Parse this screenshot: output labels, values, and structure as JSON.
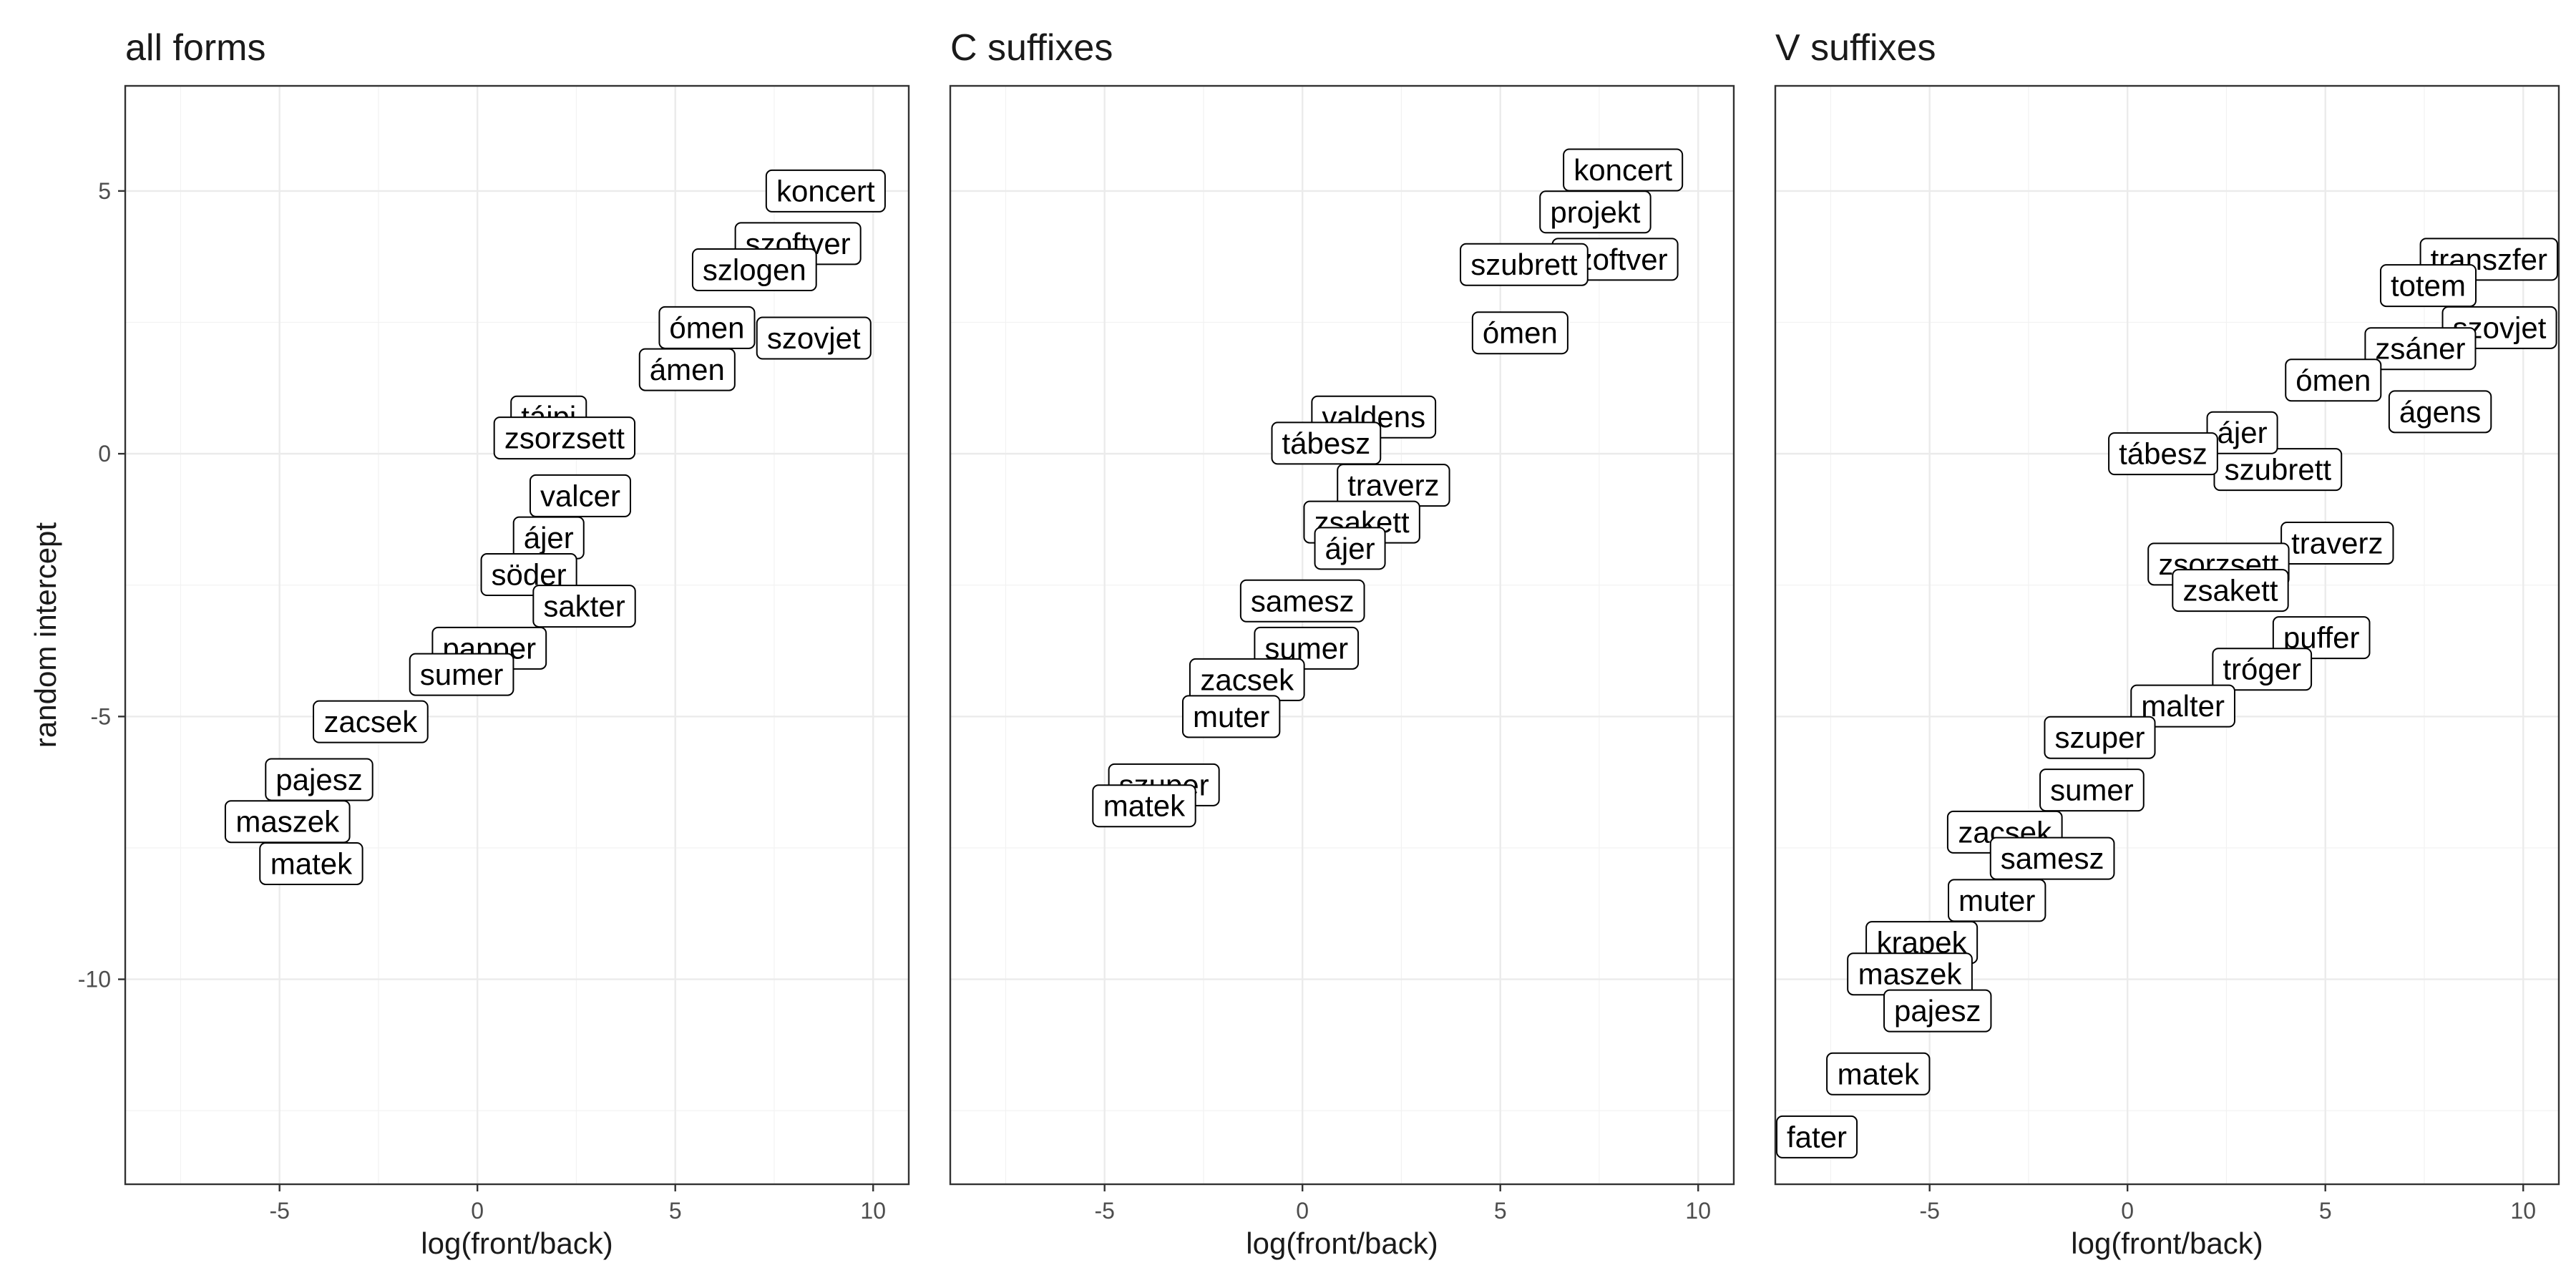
{
  "chart_data": [
    {
      "type": "scatter",
      "title": "all forms",
      "xlabel": "log(front/back)",
      "ylabel": "random intercept",
      "xlim": [
        -8.9,
        10.9
      ],
      "ylim": [
        -13.9,
        7.0
      ],
      "xticks": [
        -5,
        0,
        5,
        10
      ],
      "yticks": [
        5,
        0,
        -5,
        -10
      ],
      "grid": true,
      "points": [
        {
          "label": "koncert",
          "x": 8.8,
          "y": 5.0
        },
        {
          "label": "szoftver",
          "x": 8.1,
          "y": 4.0
        },
        {
          "label": "szlogen",
          "x": 7.0,
          "y": 3.5
        },
        {
          "label": "szovjet",
          "x": 8.5,
          "y": 2.2
        },
        {
          "label": "ómen",
          "x": 5.8,
          "y": 2.4
        },
        {
          "label": "ámen",
          "x": 5.3,
          "y": 1.6
        },
        {
          "label": "tájpi",
          "x": 1.8,
          "y": 0.7
        },
        {
          "label": "zsorzsett",
          "x": 2.2,
          "y": 0.3
        },
        {
          "label": "valcer",
          "x": 2.6,
          "y": -0.8
        },
        {
          "label": "ájer",
          "x": 1.8,
          "y": -1.6
        },
        {
          "label": "söder",
          "x": 1.3,
          "y": -2.3
        },
        {
          "label": "sakter",
          "x": 2.7,
          "y": -2.9
        },
        {
          "label": "papper",
          "x": 0.3,
          "y": -3.7
        },
        {
          "label": "sumer",
          "x": -0.4,
          "y": -4.2
        },
        {
          "label": "zacsek",
          "x": -2.7,
          "y": -5.1
        },
        {
          "label": "pajesz",
          "x": -4.0,
          "y": -6.2
        },
        {
          "label": "maszek",
          "x": -4.8,
          "y": -7.0
        },
        {
          "label": "matek",
          "x": -4.2,
          "y": -7.8
        }
      ]
    },
    {
      "type": "scatter",
      "title": "C suffixes",
      "xlabel": "log(front/back)",
      "ylabel": "",
      "xlim": [
        -8.9,
        10.9
      ],
      "ylim": [
        -13.9,
        7.0
      ],
      "xticks": [
        -5,
        0,
        5,
        10
      ],
      "grid": true,
      "points": [
        {
          "label": "koncert",
          "x": 8.1,
          "y": 5.4
        },
        {
          "label": "projekt",
          "x": 7.4,
          "y": 4.6
        },
        {
          "label": "szoftver",
          "x": 7.9,
          "y": 3.7
        },
        {
          "label": "szubrett",
          "x": 5.6,
          "y": 3.6
        },
        {
          "label": "ómen",
          "x": 5.5,
          "y": 2.3
        },
        {
          "label": "valdens",
          "x": 1.8,
          "y": 0.7
        },
        {
          "label": "tábesz",
          "x": 0.6,
          "y": 0.2
        },
        {
          "label": "traverz",
          "x": 2.3,
          "y": -0.6
        },
        {
          "label": "zsakett",
          "x": 1.5,
          "y": -1.3
        },
        {
          "label": "ájer",
          "x": 1.2,
          "y": -1.8
        },
        {
          "label": "samesz",
          "x": 0.0,
          "y": -2.8
        },
        {
          "label": "sumer",
          "x": 0.1,
          "y": -3.7
        },
        {
          "label": "zacsek",
          "x": -1.4,
          "y": -4.3
        },
        {
          "label": "muter",
          "x": -1.8,
          "y": -5.0
        },
        {
          "label": "szuper",
          "x": -3.5,
          "y": -6.3
        },
        {
          "label": "matek",
          "x": -4.0,
          "y": -6.7
        }
      ]
    },
    {
      "type": "scatter",
      "title": "V suffixes",
      "xlabel": "log(front/back)",
      "ylabel": "",
      "xlim": [
        -8.9,
        10.9
      ],
      "ylim": [
        -13.9,
        7.0
      ],
      "xticks": [
        -5,
        0,
        5,
        10
      ],
      "grid": true,
      "points": [
        {
          "label": "transzfer",
          "x": 9.8,
          "y": 3.7
        },
        {
          "label": "totem",
          "x": 7.6,
          "y": 3.2
        },
        {
          "label": "szovjet",
          "x": 9.4,
          "y": 2.4
        },
        {
          "label": "zsáner",
          "x": 7.4,
          "y": 2.0
        },
        {
          "label": "ómen",
          "x": 5.2,
          "y": 1.4
        },
        {
          "label": "ágens",
          "x": 7.9,
          "y": 0.8
        },
        {
          "label": "szubrett",
          "x": 3.8,
          "y": -0.3
        },
        {
          "label": "ájer",
          "x": 2.9,
          "y": 0.4
        },
        {
          "label": "tábesz",
          "x": 0.9,
          "y": 0.0
        },
        {
          "label": "traverz",
          "x": 5.3,
          "y": -1.7
        },
        {
          "label": "zsorzsett",
          "x": 2.3,
          "y": -2.1
        },
        {
          "label": "zsakett",
          "x": 2.6,
          "y": -2.6
        },
        {
          "label": "puffer",
          "x": 4.9,
          "y": -3.5
        },
        {
          "label": "tróger",
          "x": 3.4,
          "y": -4.1
        },
        {
          "label": "malter",
          "x": 1.4,
          "y": -4.8
        },
        {
          "label": "szuper",
          "x": -0.7,
          "y": -5.4
        },
        {
          "label": "sumer",
          "x": -0.9,
          "y": -6.4
        },
        {
          "label": "zacsek",
          "x": -3.1,
          "y": -7.2
        },
        {
          "label": "samesz",
          "x": -1.9,
          "y": -7.7
        },
        {
          "label": "muter",
          "x": -3.3,
          "y": -8.5
        },
        {
          "label": "krapek",
          "x": -5.2,
          "y": -9.3
        },
        {
          "label": "maszek",
          "x": -5.5,
          "y": -9.9
        },
        {
          "label": "pajesz",
          "x": -4.8,
          "y": -10.6
        },
        {
          "label": "matek",
          "x": -6.3,
          "y": -11.8
        },
        {
          "label": "fater",
          "x": -8.1,
          "y": -13.0
        }
      ]
    }
  ]
}
